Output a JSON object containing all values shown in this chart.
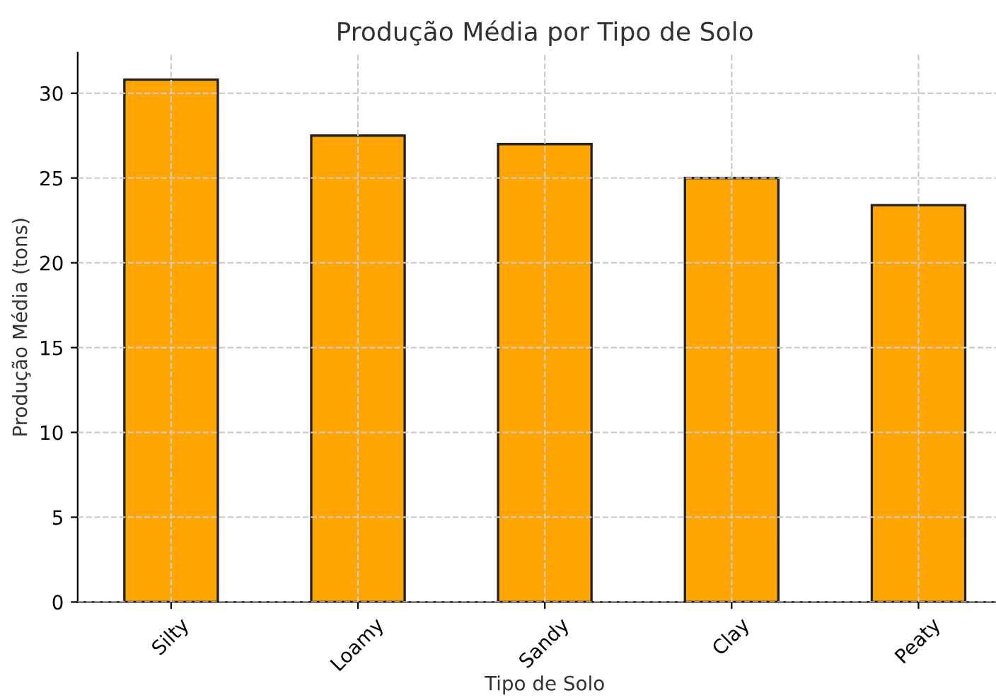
{
  "chart_data": {
    "type": "bar",
    "title": "Produção Média por Tipo de Solo",
    "xlabel": "Tipo de Solo",
    "ylabel": "Produção Média (tons)",
    "categories": [
      "Silty",
      "Loamy",
      "Sandy",
      "Clay",
      "Peaty"
    ],
    "values": [
      30.8,
      27.5,
      27.0,
      25.0,
      23.4
    ],
    "color": "#ffa500",
    "ylim": [
      0,
      32.4
    ],
    "yticks": [
      0,
      5,
      10,
      15,
      20,
      25,
      30
    ],
    "grid": true
  }
}
